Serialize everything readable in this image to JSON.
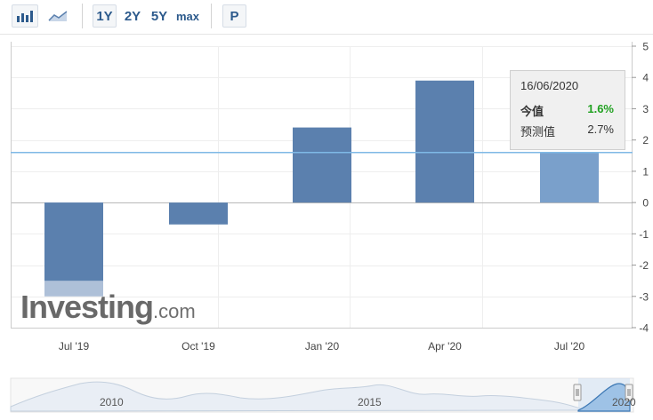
{
  "toolbar": {
    "buttons": [
      {
        "label": "1Y"
      },
      {
        "label": "2Y"
      },
      {
        "label": "5Y"
      },
      {
        "label": "max"
      },
      {
        "label": "P"
      }
    ]
  },
  "colors": {
    "bar": "#5b80ae",
    "bar_highlight": "#7aa0cb",
    "bar_forecast": "#aec0d8",
    "reference_line": "#7fb9e6",
    "positive_value": "#21a121"
  },
  "tooltip": {
    "date": "16/06/2020",
    "actual_label": "今值",
    "actual_value": "1.6%",
    "forecast_label": "预测值",
    "forecast_value": "2.7%"
  },
  "watermark": {
    "brand": "Investing",
    "domain": ".com"
  },
  "chart_data": {
    "type": "bar",
    "categories": [
      "Jul '19",
      "Oct '19",
      "Jan '20",
      "Apr '20",
      "Jul '20"
    ],
    "series": [
      {
        "values": [
          -2.5,
          -0.7,
          2.4,
          3.9,
          1.6
        ]
      },
      {
        "values": [
          -3.0,
          null,
          null,
          null,
          2.7
        ]
      }
    ],
    "reference_line": 1.6,
    "ylim": [
      -4,
      5
    ],
    "yticks": [
      5,
      4,
      3,
      2,
      1,
      0,
      -1,
      -2,
      -3,
      -4
    ],
    "highlighted_index": 4,
    "grid": true,
    "xlabel": "",
    "ylabel": ""
  },
  "navigator": {
    "labels": [
      "2010",
      "2015",
      "2020"
    ]
  }
}
